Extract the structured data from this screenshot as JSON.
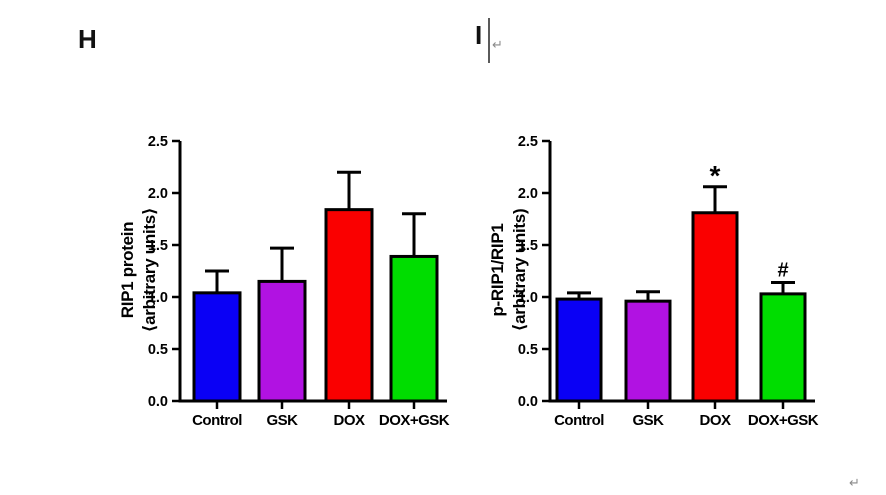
{
  "page": {
    "background": "#ffffff",
    "panels": [
      {
        "label": "H"
      },
      {
        "label": "I"
      }
    ],
    "return_marks": [
      "↵",
      "↵"
    ]
  },
  "chart_data": [
    {
      "type": "bar",
      "panel": "H",
      "title": "",
      "ylabel_lines": [
        "RIP1 protein",
        "⟨arbitrary units⟩"
      ],
      "xlabel": "",
      "categories": [
        "Control",
        "GSK",
        "DOX",
        "DOX+GSK"
      ],
      "values": [
        1.04,
        1.15,
        1.84,
        1.39
      ],
      "errors_up": [
        0.21,
        0.32,
        0.36,
        0.41
      ],
      "annotations": [
        "",
        "",
        "",
        ""
      ],
      "bar_colors": [
        "#0a00f5",
        "#b112e2",
        "#fa0000",
        "#00dd00"
      ],
      "bar_border_color": "#000000",
      "yticks": [
        0.0,
        0.5,
        1.0,
        1.5,
        2.0,
        2.5
      ],
      "ylim": [
        0,
        2.5
      ],
      "grid": false,
      "legend": null
    },
    {
      "type": "bar",
      "panel": "I",
      "title": "",
      "ylabel_lines": [
        "p-RIP1/RIP1",
        "⟨arbitrary units)"
      ],
      "xlabel": "",
      "categories": [
        "Control",
        "GSK",
        "DOX",
        "DOX+GSK"
      ],
      "values": [
        0.98,
        0.96,
        1.81,
        1.03
      ],
      "errors_up": [
        0.06,
        0.09,
        0.25,
        0.11
      ],
      "annotations": [
        "",
        "",
        "*",
        "#"
      ],
      "bar_colors": [
        "#0a00f5",
        "#b112e2",
        "#fa0000",
        "#00dd00"
      ],
      "bar_border_color": "#000000",
      "yticks": [
        0.0,
        0.5,
        1.0,
        1.5,
        2.0,
        2.5
      ],
      "ylim": [
        0,
        2.5
      ],
      "grid": false,
      "legend": null
    }
  ]
}
